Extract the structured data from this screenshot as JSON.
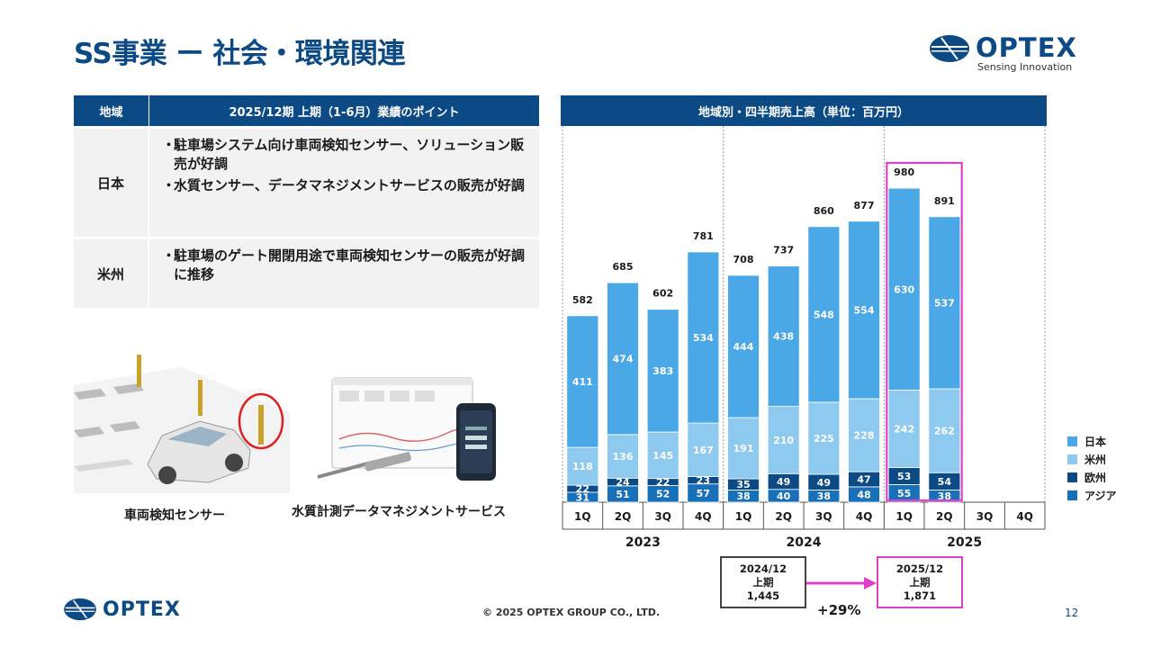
{
  "title": "SS事業 ー 社会・環境関連",
  "logo": {
    "wordmark": "OPTEX",
    "tagline": "Sensing Innovation"
  },
  "table": {
    "head_region": "地域",
    "head_points": "2025/12期 上期（1-6月）業績のポイント",
    "rows": [
      {
        "region": "日本",
        "points": [
          "駐車場システム向け車両検知センサー、ソリューション販売が好調",
          "水質センサー、データマネジメントサービスの販売が好調"
        ]
      },
      {
        "region": "米州",
        "points": [
          "駐車場のゲート開閉用途で車両検知センサーの販売が好調に推移"
        ]
      }
    ]
  },
  "illustrations": {
    "car_caption": "車両検知センサー",
    "water_caption": "水質計測データマネジメントサービス"
  },
  "chart_header": "地域別・四半期売上高（単位：百万円）",
  "chart_data": {
    "type": "bar",
    "stacked": true,
    "categories": [
      "1Q",
      "2Q",
      "3Q",
      "4Q",
      "1Q",
      "2Q",
      "3Q",
      "4Q",
      "1Q",
      "2Q",
      "3Q",
      "4Q"
    ],
    "year_groups": [
      {
        "label": "2023",
        "quarters": 4
      },
      {
        "label": "2024",
        "quarters": 4
      },
      {
        "label": "2025",
        "quarters": 4
      }
    ],
    "series": [
      {
        "name": "アジア",
        "color": "#1870b8",
        "values": [
          31,
          51,
          52,
          57,
          38,
          40,
          38,
          48,
          55,
          38,
          null,
          null
        ]
      },
      {
        "name": "欧州",
        "color": "#0b4a84",
        "values": [
          22,
          24,
          22,
          23,
          35,
          49,
          49,
          47,
          53,
          54,
          null,
          null
        ]
      },
      {
        "name": "米州",
        "color": "#8ec9f0",
        "values": [
          118,
          136,
          145,
          167,
          191,
          210,
          225,
          228,
          242,
          262,
          null,
          null
        ]
      },
      {
        "name": "日本",
        "color": "#4aa8e6",
        "values": [
          411,
          474,
          383,
          534,
          444,
          438,
          548,
          554,
          630,
          537,
          null,
          null
        ]
      }
    ],
    "totals": [
      582,
      685,
      602,
      781,
      708,
      737,
      860,
      877,
      980,
      891,
      null,
      null
    ],
    "highlight": [
      8,
      9
    ],
    "highlight_color": "#e040c8",
    "ylim": [
      0,
      1000
    ]
  },
  "legend": [
    "日本",
    "米州",
    "欧州",
    "アジア"
  ],
  "comparison": {
    "prev": {
      "period": "2024/12",
      "label": "上期",
      "value": "1,445"
    },
    "curr": {
      "period": "2025/12",
      "label": "上期",
      "value": "1,871"
    },
    "growth": "+29%"
  },
  "footer": {
    "copyright": "© 2025 OPTEX GROUP CO., LTD.",
    "page": "12"
  }
}
